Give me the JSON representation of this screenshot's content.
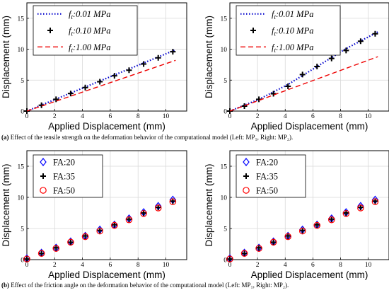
{
  "chart_data": [
    {
      "type": "line",
      "panel": "a-left",
      "xlabel": "Applied Displacement (mm)",
      "ylabel": "Displacement (mm)",
      "xlim": [
        0,
        11.5
      ],
      "ylim": [
        0,
        17.5
      ],
      "xticks": [
        0,
        2,
        4,
        6,
        8,
        10
      ],
      "yticks": [
        0,
        5,
        10,
        15
      ],
      "grid": true,
      "legend_position": "top-left",
      "series": [
        {
          "name": "f_t:0.01 MPa",
          "style": "dotted",
          "color": "#0000cc",
          "x": [
            0,
            10.7
          ],
          "y": [
            0,
            9.9
          ]
        },
        {
          "name": "f_t:0.10 MPa",
          "style": "plus",
          "color": "#000000",
          "x": [
            0,
            1.05,
            2.1,
            3.15,
            4.2,
            5.25,
            6.3,
            7.35,
            8.4,
            9.45,
            10.5
          ],
          "y": [
            0,
            0.95,
            1.9,
            2.85,
            3.8,
            4.75,
            5.7,
            6.6,
            7.6,
            8.6,
            9.6
          ]
        },
        {
          "name": "f_t:1.00 MPa",
          "style": "dashed",
          "color": "#ee0000",
          "x": [
            0,
            10.7
          ],
          "y": [
            0,
            8.2
          ]
        }
      ]
    },
    {
      "type": "line",
      "panel": "a-right",
      "xlabel": "Applied Displacement (mm)",
      "ylabel": "Displacement (mm)",
      "xlim": [
        0,
        11.5
      ],
      "ylim": [
        0,
        17.5
      ],
      "xticks": [
        0,
        2,
        4,
        6,
        8,
        10
      ],
      "yticks": [
        0,
        5,
        10,
        15
      ],
      "grid": true,
      "legend_position": "top-left",
      "series": [
        {
          "name": "f_t:0.01 MPa",
          "style": "dotted",
          "color": "#0000cc",
          "x": [
            0,
            2.1,
            4.2,
            6.3,
            8.4,
            10.7
          ],
          "y": [
            0,
            1.9,
            4.3,
            7.2,
            10.1,
            12.8
          ]
        },
        {
          "name": "f_t:0.10 MPa",
          "style": "plus",
          "color": "#000000",
          "x": [
            0,
            1.05,
            2.1,
            3.15,
            4.2,
            5.25,
            6.3,
            7.35,
            8.4,
            9.45,
            10.5
          ],
          "y": [
            0,
            0.8,
            1.9,
            2.8,
            4.0,
            5.9,
            7.2,
            8.5,
            9.8,
            11.3,
            12.5
          ]
        },
        {
          "name": "f_t:1.00 MPa",
          "style": "dashed",
          "color": "#ee0000",
          "x": [
            0,
            10.7
          ],
          "y": [
            0,
            8.8
          ]
        }
      ]
    },
    {
      "type": "scatter",
      "panel": "b-left",
      "xlabel": "Applied Displacement (mm)",
      "ylabel": "Displacement (mm)",
      "xlim": [
        0,
        11.5
      ],
      "ylim": [
        0,
        17.5
      ],
      "xticks": [
        0,
        2,
        4,
        6,
        8,
        10
      ],
      "yticks": [
        0,
        5,
        10,
        15
      ],
      "grid": true,
      "legend_position": "top-left",
      "series": [
        {
          "name": "FA:20",
          "style": "diamond",
          "color": "#0000ff",
          "x": [
            0,
            1.05,
            2.1,
            3.15,
            4.2,
            5.25,
            6.3,
            7.35,
            8.4,
            9.45,
            10.5
          ],
          "y": [
            0.2,
            1.1,
            1.9,
            2.9,
            3.8,
            4.8,
            5.6,
            6.6,
            7.6,
            8.6,
            9.6
          ]
        },
        {
          "name": "FA:35",
          "style": "plus",
          "color": "#000000",
          "x": [
            0,
            1.05,
            2.1,
            3.15,
            4.2,
            5.25,
            6.3,
            7.35,
            8.4,
            9.45,
            10.5
          ],
          "y": [
            0.1,
            1.0,
            1.9,
            2.8,
            3.8,
            4.7,
            5.6,
            6.5,
            7.5,
            8.4,
            9.4
          ]
        },
        {
          "name": "FA:50",
          "style": "circle",
          "color": "#ff0000",
          "x": [
            0,
            1.05,
            2.1,
            3.15,
            4.2,
            5.25,
            6.3,
            7.35,
            8.4,
            9.45,
            10.5
          ],
          "y": [
            0.1,
            1.0,
            1.8,
            2.8,
            3.7,
            4.6,
            5.5,
            6.4,
            7.4,
            8.3,
            9.3
          ]
        }
      ]
    },
    {
      "type": "scatter",
      "panel": "b-right",
      "xlabel": "Applied Displacement (mm)",
      "ylabel": "Displacement (mm)",
      "xlim": [
        0,
        11.5
      ],
      "ylim": [
        0,
        17.5
      ],
      "xticks": [
        0,
        2,
        4,
        6,
        8,
        10
      ],
      "yticks": [
        0,
        5,
        10,
        15
      ],
      "grid": true,
      "legend_position": "top-left",
      "series": [
        {
          "name": "FA:20",
          "style": "diamond",
          "color": "#0000ff",
          "x": [
            0,
            1.05,
            2.1,
            3.15,
            4.2,
            5.25,
            6.3,
            7.35,
            8.4,
            9.45,
            10.5
          ],
          "y": [
            0.2,
            1.1,
            1.9,
            2.9,
            3.8,
            4.8,
            5.6,
            6.6,
            7.6,
            8.6,
            9.6
          ]
        },
        {
          "name": "FA:35",
          "style": "plus",
          "color": "#000000",
          "x": [
            0,
            1.05,
            2.1,
            3.15,
            4.2,
            5.25,
            6.3,
            7.35,
            8.4,
            9.45,
            10.5
          ],
          "y": [
            0.1,
            1.0,
            1.9,
            2.8,
            3.8,
            4.7,
            5.6,
            6.5,
            7.5,
            8.4,
            9.4
          ]
        },
        {
          "name": "FA:50",
          "style": "circle",
          "color": "#ff0000",
          "x": [
            0,
            1.05,
            2.1,
            3.15,
            4.2,
            5.25,
            6.3,
            7.35,
            8.4,
            9.45,
            10.5
          ],
          "y": [
            0.1,
            1.0,
            1.8,
            2.8,
            3.7,
            4.6,
            5.5,
            6.4,
            7.4,
            8.3,
            9.3
          ]
        }
      ]
    }
  ],
  "captions": {
    "a": {
      "label": "(a)",
      "text": " Effect of the tensile strength on the deformation behavior of the computational model (Left: MP₁, Right: MP₂)."
    },
    "b": {
      "label": "(b)",
      "text": " Effect of the friction angle on the deformation behavior of the computational model (Left: MP₁, Right: MP₂)."
    }
  }
}
